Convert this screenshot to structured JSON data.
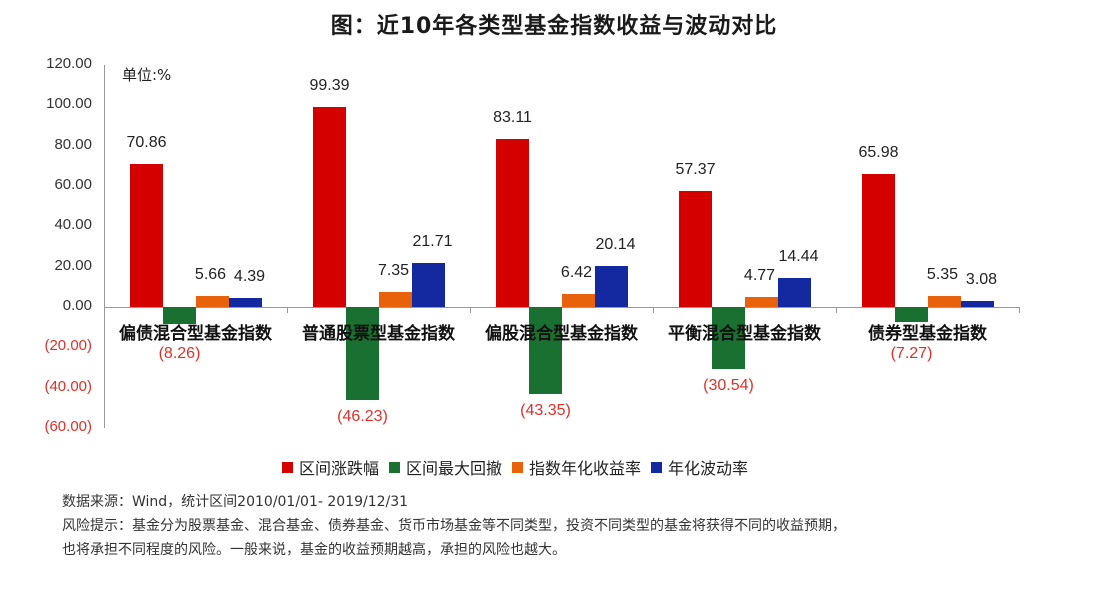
{
  "title": "图：近10年各类型基金指数收益与波动对比",
  "unit_label": "单位:%",
  "legend": [
    {
      "label": "区间涨跌幅",
      "color": "#d40000"
    },
    {
      "label": "区间最大回撤",
      "color": "#1a7030"
    },
    {
      "label": "指数年化收益率",
      "color": "#e8620c"
    },
    {
      "label": "年化波动率",
      "color": "#1428a0"
    }
  ],
  "y_ticks": [
    "120.00",
    "100.00",
    "80.00",
    "60.00",
    "40.00",
    "20.00",
    "0.00",
    "(20.00)",
    "(40.00)",
    "(60.00)"
  ],
  "footer": {
    "source": "数据来源：Wind，统计区间2010/01/01- 2019/12/31",
    "risk_line1": "风险提示：基金分为股票基金、混合基金、债券基金、货币市场基金等不同类型，投资不同类型的基金将获得不同的收益预期，",
    "risk_line2": "也将承担不同程度的风险。一般来说，基金的收益预期越高，承担的风险也越大。"
  },
  "chart_data": {
    "type": "bar",
    "title": "图：近10年各类型基金指数收益与波动对比",
    "xlabel": "",
    "ylabel": "单位:%",
    "ylim": [
      -60,
      120
    ],
    "grid": false,
    "legend_position": "bottom",
    "categories": [
      "偏债混合型基金指数",
      "普通股票型基金指数",
      "偏股混合型基金指数",
      "平衡混合型基金指数",
      "债券型基金指数"
    ],
    "series": [
      {
        "name": "区间涨跌幅",
        "color": "#d40000",
        "values": [
          70.86,
          99.39,
          83.11,
          57.37,
          65.98
        ],
        "labels": [
          "70.86",
          "99.39",
          "83.11",
          "57.37",
          "65.98"
        ]
      },
      {
        "name": "区间最大回撤",
        "color": "#1a7030",
        "values": [
          -8.26,
          -46.23,
          -43.35,
          -30.54,
          -7.27
        ],
        "labels": [
          "(8.26)",
          "(46.23)",
          "(43.35)",
          "(30.54)",
          "(7.27)"
        ]
      },
      {
        "name": "指数年化收益率",
        "color": "#e8620c",
        "values": [
          5.66,
          7.35,
          6.42,
          4.77,
          5.35
        ],
        "labels": [
          "5.66",
          "7.35",
          "6.42",
          "4.77",
          "5.35"
        ]
      },
      {
        "name": "年化波动率",
        "color": "#1428a0",
        "values": [
          4.39,
          21.71,
          20.14,
          14.44,
          3.08
        ],
        "labels": [
          "4.39",
          "21.71",
          "20.14",
          "14.44",
          "3.08"
        ]
      }
    ]
  }
}
